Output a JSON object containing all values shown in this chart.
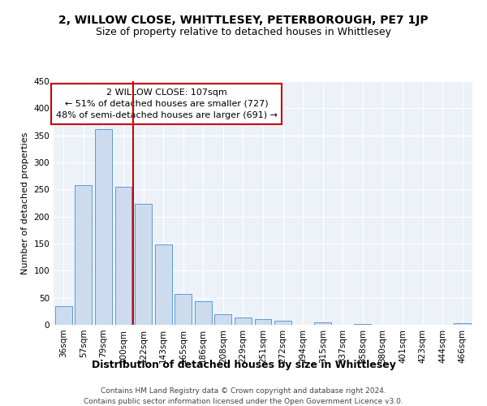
{
  "title1": "2, WILLOW CLOSE, WHITTLESEY, PETERBOROUGH, PE7 1JP",
  "title2": "Size of property relative to detached houses in Whittlesey",
  "xlabel": "Distribution of detached houses by size in Whittlesey",
  "ylabel": "Number of detached properties",
  "categories": [
    "36sqm",
    "57sqm",
    "79sqm",
    "100sqm",
    "122sqm",
    "143sqm",
    "165sqm",
    "186sqm",
    "208sqm",
    "229sqm",
    "251sqm",
    "272sqm",
    "294sqm",
    "315sqm",
    "337sqm",
    "358sqm",
    "380sqm",
    "401sqm",
    "423sqm",
    "444sqm",
    "466sqm"
  ],
  "values": [
    35,
    258,
    362,
    255,
    224,
    148,
    57,
    43,
    20,
    13,
    10,
    7,
    0,
    5,
    0,
    2,
    0,
    0,
    0,
    0,
    3
  ],
  "bar_color": "#ccdcee",
  "bar_edge_color": "#5b9bd5",
  "ref_line_index": 3,
  "ref_line_color": "#cc0000",
  "annotation_line1": "2 WILLOW CLOSE: 107sqm",
  "annotation_line2": "← 51% of detached houses are smaller (727)",
  "annotation_line3": "48% of semi-detached houses are larger (691) →",
  "annotation_box_color": "#ffffff",
  "annotation_box_edge": "#cc0000",
  "ylim": [
    0,
    450
  ],
  "yticks": [
    0,
    50,
    100,
    150,
    200,
    250,
    300,
    350,
    400,
    450
  ],
  "background_color": "#edf2f9",
  "footer1": "Contains HM Land Registry data © Crown copyright and database right 2024.",
  "footer2": "Contains public sector information licensed under the Open Government Licence v3.0.",
  "title1_fontsize": 10,
  "title2_fontsize": 9,
  "xlabel_fontsize": 9,
  "ylabel_fontsize": 8,
  "tick_fontsize": 7.5,
  "annotation_fontsize": 8,
  "footer_fontsize": 6.5
}
